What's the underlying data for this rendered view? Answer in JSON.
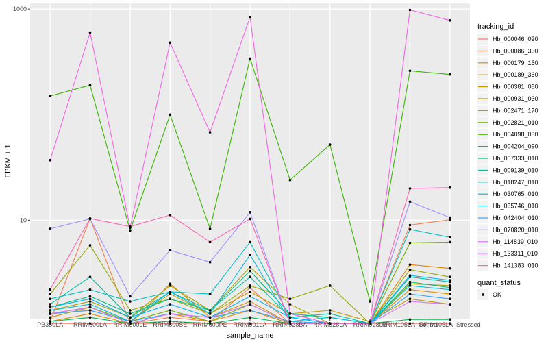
{
  "chart_data": {
    "type": "line",
    "xlabel": "sample_name",
    "ylabel": "FPKM + 1",
    "y_scale": "log10",
    "ylim": [
      1.17,
      1130
    ],
    "yticks": [
      {
        "value": 10,
        "label": "10"
      },
      {
        "value": 1000,
        "label": "1000"
      }
    ],
    "categories": [
      "PB350LA",
      "RRIM600LA",
      "RRIM600LE",
      "RRIM600SE",
      "RRIM600PE",
      "RRIM901LA",
      "RRIM928BA",
      "RRIM928LA",
      "RRIM928LE",
      "RRIM105LA_Control",
      "RRIM105LA_Stressed"
    ],
    "grid": true,
    "legend_title": "tracking_id",
    "series": [
      {
        "name": "Hb_000046_020",
        "color": "#F8766D",
        "values": [
          1.05,
          1.05,
          1.05,
          1.05,
          1.05,
          1.05,
          1.05,
          1.05,
          1.05,
          1.05,
          1.05
        ]
      },
      {
        "name": "Hb_000086_330",
        "color": "#F07E4C",
        "values": [
          1.1,
          10.4,
          1.05,
          1.2,
          1.1,
          2.3,
          1.05,
          1.05,
          1.05,
          9.0,
          10.1
        ]
      },
      {
        "name": "Hb_000179_150",
        "color": "#E58700",
        "values": [
          1.1,
          1.3,
          1.05,
          1.3,
          1.1,
          1.4,
          1.05,
          1.05,
          1.05,
          3.8,
          3.5
        ]
      },
      {
        "name": "Hb_000189_360",
        "color": "#D69100",
        "values": [
          1.2,
          1.5,
          1.05,
          2.5,
          1.2,
          1.7,
          1.05,
          1.05,
          1.05,
          2.2,
          2.0
        ]
      },
      {
        "name": "Hb_000381_080",
        "color": "#C49A00",
        "values": [
          1.3,
          1.4,
          1.1,
          2.0,
          1.3,
          2.1,
          1.3,
          1.4,
          1.1,
          1.8,
          1.6
        ]
      },
      {
        "name": "Hb_000931_030",
        "color": "#AEA200",
        "values": [
          1.4,
          1.7,
          1.2,
          2.4,
          1.4,
          3.6,
          1.6,
          1.05,
          1.05,
          2.5,
          2.4
        ]
      },
      {
        "name": "Hb_002471_170",
        "color": "#94A900",
        "values": [
          2.0,
          5.8,
          1.4,
          1.8,
          1.3,
          2.4,
          1.8,
          2.4,
          1.05,
          3.4,
          2.9
        ]
      },
      {
        "name": "Hb_002821_010",
        "color": "#72B000",
        "values": [
          1.3,
          1.5,
          1.1,
          1.4,
          1.1,
          1.6,
          1.05,
          1.05,
          1.05,
          6.1,
          6.2
        ]
      },
      {
        "name": "Hb_004098_030",
        "color": "#39B600",
        "values": [
          150,
          190,
          8.0,
          100,
          8.3,
          340,
          24.0,
          52.0,
          1.7,
          260,
          240
        ]
      },
      {
        "name": "Hb_004204_090",
        "color": "#00BB4E",
        "values": [
          1.1,
          1.2,
          1.05,
          1.1,
          1.05,
          1.2,
          1.05,
          1.05,
          1.05,
          1.15,
          1.15
        ]
      },
      {
        "name": "Hb_007333_010",
        "color": "#00BF7D",
        "values": [
          1.5,
          1.9,
          1.3,
          1.8,
          1.4,
          3.3,
          1.3,
          1.2,
          1.05,
          2.6,
          2.3
        ]
      },
      {
        "name": "Hb_009139_010",
        "color": "#00C1A3",
        "values": [
          1.6,
          2.9,
          1.2,
          2.1,
          1.4,
          2.9,
          1.2,
          1.3,
          1.05,
          2.9,
          2.6
        ]
      },
      {
        "name": "Hb_018247_010",
        "color": "#00C0C5",
        "values": [
          1.8,
          2.2,
          1.7,
          2.1,
          2.0,
          6.2,
          1.2,
          1.05,
          1.05,
          8.2,
          6.9
        ]
      },
      {
        "name": "Hb_030765_010",
        "color": "#00BCE3",
        "values": [
          1.4,
          1.6,
          1.1,
          2.1,
          1.3,
          4.7,
          1.1,
          1.2,
          1.05,
          2.4,
          2.2
        ]
      },
      {
        "name": "Hb_035746_010",
        "color": "#00B3F9",
        "values": [
          1.5,
          1.8,
          1.2,
          1.6,
          1.2,
          1.9,
          1.2,
          1.05,
          1.05,
          3.0,
          2.7
        ]
      },
      {
        "name": "Hb_042404_010",
        "color": "#2FA6FF",
        "values": [
          1.3,
          1.4,
          1.1,
          1.3,
          1.2,
          1.4,
          1.1,
          1.05,
          1.05,
          2.0,
          1.8
        ]
      },
      {
        "name": "Hb_070820_010",
        "color": "#9D8DFF",
        "values": [
          8.3,
          10.3,
          1.9,
          5.2,
          4.0,
          11.9,
          1.05,
          1.05,
          1.05,
          15.0,
          10.6
        ]
      },
      {
        "name": "Hb_114839_010",
        "color": "#D476FF",
        "values": [
          1.3,
          1.5,
          1.05,
          1.3,
          1.2,
          1.6,
          1.05,
          1.05,
          1.05,
          1.7,
          1.6
        ]
      },
      {
        "name": "Hb_133311_010",
        "color": "#F563E3",
        "values": [
          37,
          600,
          8.5,
          480,
          68,
          840,
          1.3,
          1.05,
          1.05,
          980,
          780
        ]
      },
      {
        "name": "Hb_141383_010",
        "color": "#FF64B0",
        "values": [
          2.2,
          10.4,
          8.7,
          11.2,
          6.2,
          10.3,
          1.05,
          1.05,
          1.05,
          20.0,
          20.4
        ]
      }
    ],
    "legend_extra_title": "quant_status",
    "legend_extra_items": [
      "OK"
    ]
  }
}
